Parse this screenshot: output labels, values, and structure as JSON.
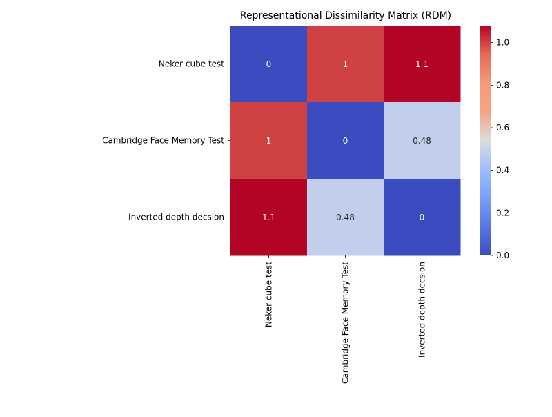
{
  "chart_data": {
    "type": "heatmap",
    "title": "Representational Dissimilarity Matrix (RDM)",
    "row_labels": [
      "Neker cube test",
      "Cambridge Face Memory Test",
      "Inverted depth decsion"
    ],
    "col_labels": [
      "Neker cube test",
      "Cambridge Face Memory Test",
      "Inverted depth decsion"
    ],
    "values": [
      [
        0,
        1.0,
        1.08
      ],
      [
        1.0,
        0,
        0.48
      ],
      [
        1.08,
        0.48,
        0
      ]
    ],
    "annotations": [
      [
        "0",
        "1",
        "1.1"
      ],
      [
        "1",
        "0",
        "0.48"
      ],
      [
        "1.1",
        "0.48",
        "0"
      ]
    ],
    "colormap": "coolwarm",
    "vmin": 0,
    "vmax": 1.08,
    "colorbar_ticks": [
      "0.0",
      "0.2",
      "0.4",
      "0.6",
      "0.8",
      "1.0"
    ],
    "colorbar_tick_values": [
      0.0,
      0.2,
      0.4,
      0.6,
      0.8,
      1.0
    ],
    "colors": {
      "text_dark": "#262626",
      "text_light": "#ffffff",
      "axis": "#000000"
    }
  }
}
